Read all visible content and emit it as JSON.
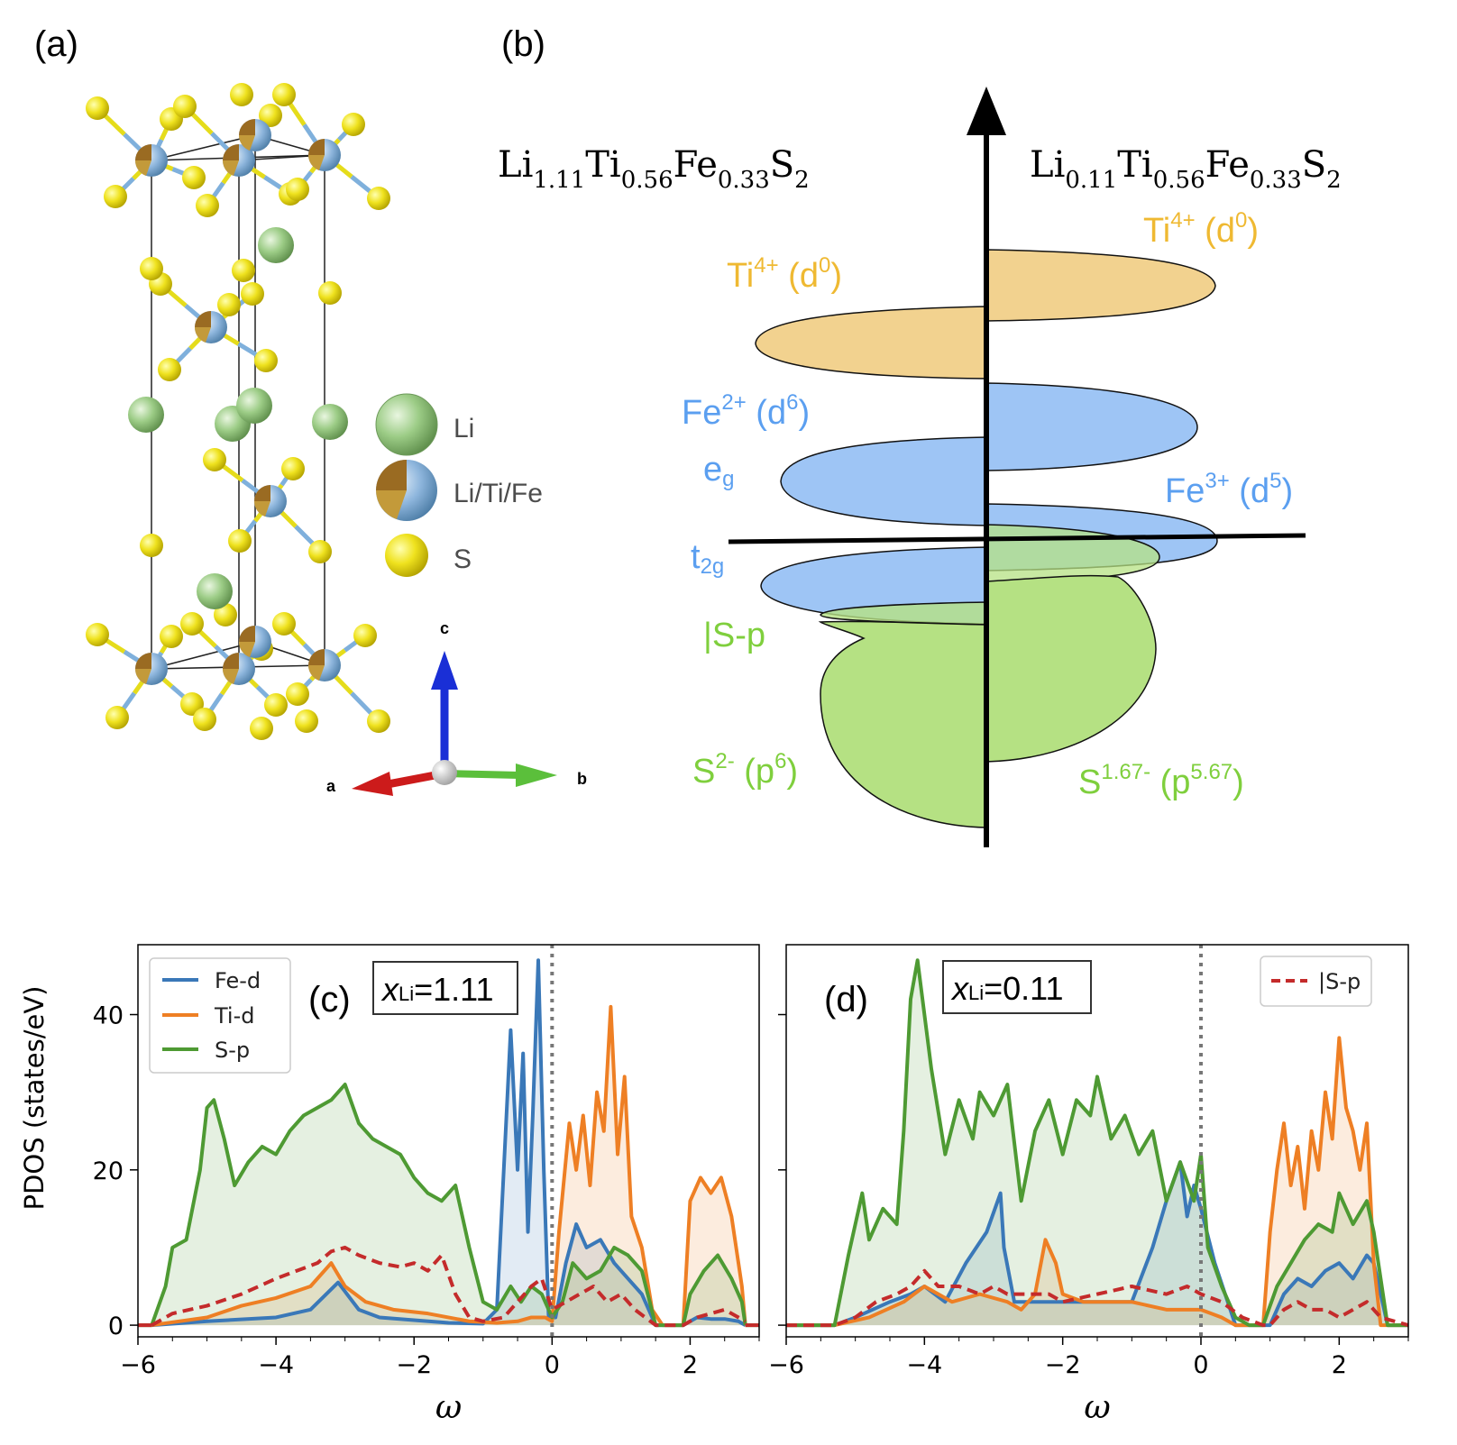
{
  "panels": {
    "a": "(a)",
    "b": "(b)",
    "c": "(c)",
    "d": "(d)"
  },
  "crystal": {
    "legend": [
      {
        "label": "Li",
        "color": "#8fc079"
      },
      {
        "label": "Li/Ti/Fe",
        "color": "#86aed6"
      },
      {
        "label": "S",
        "color": "#e5dc1b"
      }
    ],
    "axes": {
      "a": "a",
      "b": "b",
      "c": "c"
    }
  },
  "schematic": {
    "left_formula": {
      "parts": [
        "Li",
        "1.11",
        "Ti",
        "0.56",
        "Fe",
        "0.33",
        "S",
        "2"
      ]
    },
    "right_formula": {
      "parts": [
        "Li",
        "0.11",
        "Ti",
        "0.56",
        "Fe",
        "0.33",
        "S",
        "2"
      ]
    },
    "labels": {
      "ti_left": {
        "base": "Ti",
        "sup": "4+",
        "rest": " (d",
        "sup2": "0",
        "end": ")"
      },
      "ti_right": {
        "base": "Ti",
        "sup": "4+",
        "rest": " (d",
        "sup2": "0",
        "end": ")"
      },
      "fe_left": {
        "base": "Fe",
        "sup": "2+",
        "rest": " (d",
        "sup2": "6",
        "end": ")"
      },
      "fe_right": {
        "base": "Fe",
        "sup": "3+",
        "rest": " (d",
        "sup2": "5",
        "end": ")"
      },
      "eg": {
        "base": "e",
        "sub": "g"
      },
      "t2g": {
        "base": "t",
        "sub": "2g"
      },
      "sp_hole": "|S-p",
      "s_left": {
        "base": "S",
        "sup": "2-",
        "rest": " (p",
        "sup2": "6",
        "end": ")"
      },
      "s_right": {
        "base": "S",
        "sup": "1.67-",
        "rest": " (p",
        "sup2": "5.67",
        "end": ")"
      }
    },
    "colors": {
      "ti": "#f2d28f",
      "fe": "#9ec5f5",
      "s": "#b5e183",
      "ti_text": "#efb932",
      "fe_text": "#5b9ff0",
      "s_text": "#7fcf3d"
    }
  },
  "chart_data": [
    {
      "type": "line",
      "panel": "(c)",
      "annotation": {
        "var": "x",
        "sub": "Li",
        "value": "=1.11"
      },
      "xlabel": "ω",
      "ylabel": "PDOS (states/eV)",
      "xlim": [
        -6,
        3
      ],
      "ylim": [
        -1.5,
        49
      ],
      "xticks": [
        -6,
        -4,
        -2,
        0,
        2
      ],
      "xticklabels": [
        "−6",
        "−4",
        "−2",
        "0",
        "2"
      ],
      "yticks": [
        0,
        20,
        40
      ],
      "yticklabels": [
        "0",
        "20",
        "40"
      ],
      "fermi_level": 0,
      "legend": {
        "position": "top-left",
        "entries": [
          "Fe-d",
          "Ti-d",
          "S-p"
        ]
      },
      "series": [
        {
          "name": "Fe-d",
          "color": "#3a78b8",
          "style": "solid",
          "fill": true,
          "x": [
            -5.8,
            -5.0,
            -4.0,
            -3.5,
            -3.1,
            -2.8,
            -2.5,
            -1.5,
            -1.0,
            -0.8,
            -0.7,
            -0.6,
            -0.5,
            -0.42,
            -0.35,
            -0.28,
            -0.2,
            -0.12,
            -0.05,
            0.05,
            0.2,
            0.35,
            0.5,
            0.7,
            0.9,
            1.1,
            1.3,
            1.5,
            1.9,
            2.1,
            2.3,
            2.5,
            2.7,
            2.8
          ],
          "y": [
            0,
            0.5,
            1,
            2,
            5.5,
            2,
            1,
            0.3,
            0.2,
            2,
            20,
            38,
            20,
            35,
            12,
            27,
            47,
            20,
            1,
            1,
            8,
            13,
            10,
            11,
            8,
            6,
            4,
            0,
            0,
            1,
            0.8,
            0.8,
            0.5,
            0
          ]
        },
        {
          "name": "Ti-d",
          "color": "#ee7f24",
          "style": "solid",
          "fill": true,
          "x": [
            -5.8,
            -5.0,
            -4.5,
            -4.0,
            -3.5,
            -3.2,
            -3.0,
            -2.7,
            -2.3,
            -1.8,
            -1.2,
            -0.8,
            -0.5,
            -0.3,
            -0.1,
            0.0,
            0.1,
            0.25,
            0.35,
            0.45,
            0.55,
            0.65,
            0.75,
            0.85,
            0.95,
            1.05,
            1.15,
            1.3,
            1.45,
            1.6,
            1.9,
            2.0,
            2.15,
            2.3,
            2.45,
            2.6,
            2.75,
            2.8
          ],
          "y": [
            0,
            1,
            2.5,
            3.5,
            5,
            8,
            5,
            3,
            2,
            1.5,
            0.5,
            0.3,
            0.5,
            1,
            1,
            0.5,
            12,
            26,
            20,
            27,
            18,
            30,
            25,
            41,
            22,
            32,
            14,
            10,
            2,
            0,
            0,
            16,
            19,
            17,
            19,
            14,
            5,
            0
          ]
        },
        {
          "name": "S-p",
          "color": "#4e9a33",
          "style": "solid",
          "fill": true,
          "x": [
            -5.8,
            -5.6,
            -5.5,
            -5.3,
            -5.1,
            -5.0,
            -4.9,
            -4.75,
            -4.6,
            -4.4,
            -4.2,
            -4.0,
            -3.8,
            -3.6,
            -3.4,
            -3.2,
            -3.0,
            -2.8,
            -2.6,
            -2.4,
            -2.2,
            -2.0,
            -1.8,
            -1.6,
            -1.4,
            -1.2,
            -1.0,
            -0.8,
            -0.6,
            -0.45,
            -0.3,
            -0.15,
            0.0,
            0.15,
            0.3,
            0.5,
            0.7,
            0.9,
            1.1,
            1.3,
            1.5,
            1.9,
            2.0,
            2.2,
            2.4,
            2.6,
            2.75,
            2.8
          ],
          "y": [
            0,
            5,
            10,
            11,
            20,
            28,
            29,
            24,
            18,
            21,
            23,
            22,
            25,
            27,
            28,
            29,
            31,
            26,
            24,
            23,
            22,
            19,
            17,
            16,
            18,
            10,
            3,
            2,
            5,
            3,
            5,
            4,
            1,
            3,
            8,
            6,
            7,
            10,
            9,
            7,
            0,
            0,
            4,
            7,
            9,
            6,
            3,
            0
          ]
        },
        {
          "name": "|S-p",
          "color": "#c42b2b",
          "style": "dashed",
          "fill": false,
          "x": [
            -5.8,
            -5.5,
            -5.0,
            -4.5,
            -4.0,
            -3.7,
            -3.4,
            -3.2,
            -3.0,
            -2.8,
            -2.5,
            -2.2,
            -2.0,
            -1.8,
            -1.6,
            -1.4,
            -1.2,
            -1.0,
            -0.7,
            -0.5,
            -0.3,
            -0.15,
            0.0,
            0.2,
            0.4,
            0.6,
            0.8,
            1.0,
            1.2,
            1.5,
            1.9,
            2.1,
            2.3,
            2.5,
            2.8
          ],
          "y": [
            0,
            1.5,
            2.5,
            4,
            6,
            7,
            8,
            9.5,
            10,
            9,
            8,
            7.5,
            8,
            7,
            9,
            4,
            1,
            0.5,
            1,
            3,
            5,
            6,
            2,
            3,
            4,
            5,
            3,
            4,
            2,
            0,
            0,
            1,
            1.5,
            2,
            0.5
          ]
        }
      ]
    },
    {
      "type": "line",
      "panel": "(d)",
      "annotation": {
        "var": "x",
        "sub": "Li",
        "value": "=0.11"
      },
      "xlabel": "ω",
      "xlim": [
        -6,
        3
      ],
      "ylim": [
        -1.5,
        49
      ],
      "xticks": [
        -6,
        -4,
        -2,
        0,
        2
      ],
      "xticklabels": [
        "−6",
        "−4",
        "−2",
        "0",
        "2"
      ],
      "fermi_level": 0,
      "legend": {
        "position": "top-right",
        "entries": [
          "|S-p"
        ]
      },
      "series": [
        {
          "name": "Fe-d",
          "color": "#3a78b8",
          "style": "solid",
          "fill": true,
          "x": [
            -6,
            -5.3,
            -5.0,
            -4.5,
            -4.2,
            -4.0,
            -3.7,
            -3.4,
            -3.1,
            -2.9,
            -2.85,
            -2.7,
            -2.5,
            -2.2,
            -2.0,
            -1.5,
            -1.0,
            -0.7,
            -0.5,
            -0.3,
            -0.2,
            -0.1,
            0.0,
            0.2,
            0.5,
            0.7,
            0.9,
            1.0,
            1.2,
            1.4,
            1.6,
            1.8,
            2.0,
            2.2,
            2.4,
            2.5,
            2.7,
            3.0
          ],
          "y": [
            0,
            0,
            1,
            3,
            4,
            5,
            3,
            8,
            12,
            17,
            10,
            3,
            3,
            3,
            3,
            3,
            3,
            10,
            16,
            21,
            14,
            18,
            15,
            8,
            0,
            0,
            0,
            0,
            4,
            6,
            5,
            7,
            8,
            6,
            9,
            8,
            0,
            0
          ]
        },
        {
          "name": "Ti-d",
          "color": "#ee7f24",
          "style": "solid",
          "fill": true,
          "x": [
            -6,
            -5.3,
            -4.8,
            -4.3,
            -4.0,
            -3.6,
            -3.2,
            -2.8,
            -2.6,
            -2.4,
            -2.25,
            -2.1,
            -2.0,
            -1.7,
            -1.3,
            -1.0,
            -0.5,
            0.0,
            0.3,
            0.5,
            0.7,
            0.9,
            1.0,
            1.1,
            1.2,
            1.3,
            1.4,
            1.5,
            1.6,
            1.7,
            1.8,
            1.9,
            2.0,
            2.1,
            2.2,
            2.3,
            2.4,
            2.5,
            2.6,
            2.7,
            3.0
          ],
          "y": [
            0,
            0,
            1,
            3,
            5,
            3,
            4,
            3,
            2,
            4,
            11,
            8,
            4,
            3,
            3,
            3,
            2,
            2,
            1,
            0,
            0,
            0,
            12,
            20,
            26,
            18,
            23,
            15,
            25,
            20,
            30,
            24,
            37,
            28,
            25,
            20,
            26,
            8,
            0,
            0,
            0
          ]
        },
        {
          "name": "S-p",
          "color": "#4e9a33",
          "style": "solid",
          "fill": true,
          "x": [
            -6,
            -5.3,
            -5.1,
            -4.9,
            -4.8,
            -4.6,
            -4.4,
            -4.3,
            -4.2,
            -4.1,
            -4.0,
            -3.9,
            -3.7,
            -3.5,
            -3.3,
            -3.2,
            -3.0,
            -2.8,
            -2.6,
            -2.4,
            -2.2,
            -2.0,
            -1.8,
            -1.6,
            -1.5,
            -1.3,
            -1.1,
            -0.9,
            -0.7,
            -0.5,
            -0.3,
            -0.1,
            0.0,
            0.1,
            0.3,
            0.5,
            0.7,
            0.9,
            1.1,
            1.3,
            1.5,
            1.7,
            1.9,
            2.0,
            2.2,
            2.4,
            2.5,
            2.7,
            3.0
          ],
          "y": [
            0,
            0,
            9,
            17,
            11,
            15,
            13,
            25,
            42,
            47,
            40,
            33,
            22,
            29,
            24,
            30,
            27,
            31,
            16,
            25,
            29,
            22,
            29,
            27,
            32,
            24,
            27,
            22,
            25,
            16,
            21,
            16,
            22,
            10,
            5,
            1,
            0,
            0,
            5,
            8,
            11,
            13,
            12,
            17,
            13,
            16,
            12,
            0,
            0
          ]
        },
        {
          "name": "|S-p",
          "color": "#c42b2b",
          "style": "dashed",
          "fill": false,
          "x": [
            -6,
            -5.3,
            -5.0,
            -4.7,
            -4.4,
            -4.2,
            -4.0,
            -3.8,
            -3.5,
            -3.2,
            -3.0,
            -2.8,
            -2.5,
            -2.2,
            -2.0,
            -1.5,
            -1.0,
            -0.5,
            -0.2,
            0.0,
            0.3,
            0.6,
            0.9,
            1.0,
            1.2,
            1.4,
            1.6,
            1.8,
            2.0,
            2.2,
            2.4,
            2.6,
            3.0
          ],
          "y": [
            0,
            0,
            1,
            3,
            4,
            5,
            7,
            5,
            5,
            4,
            5,
            4,
            4,
            4,
            3,
            4,
            5,
            4,
            5,
            4,
            3,
            1,
            0,
            0,
            2,
            3,
            2,
            2,
            1,
            2,
            3,
            1,
            0
          ]
        }
      ]
    }
  ]
}
